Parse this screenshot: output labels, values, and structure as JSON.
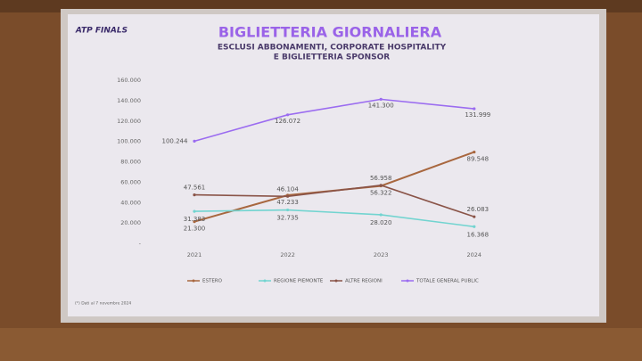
{
  "chart_data": {
    "type": "line",
    "logo": "ATP FINALS",
    "title": "BIGLIETTERIA GIORNALIERA",
    "subtitle": [
      "ESCLUSI ABBONAMENTI, CORPORATE HOSPITALITY",
      "E BIGLIETTERIA SPONSOR"
    ],
    "categories": [
      "2021",
      "2022",
      "2023",
      "2024"
    ],
    "series": [
      {
        "name": "ESTERO",
        "color": "#a8673f",
        "values": [
          21300,
          47233,
          56322,
          89548
        ],
        "value_labels": [
          "21.300",
          "47.233",
          "56.322",
          "89.548"
        ]
      },
      {
        "name": "REGIONE PIEMONTE",
        "color": "#72d4d0",
        "values": [
          31383,
          32735,
          28020,
          16368
        ],
        "value_labels": [
          "31.383",
          "32.735",
          "28.020",
          "16.368"
        ]
      },
      {
        "name": "ALTRE REGIONI",
        "color": "#8a5448",
        "values": [
          47561,
          46104,
          56958,
          26083
        ],
        "value_labels": [
          "47.561",
          "46.104",
          "56.958",
          "26.083"
        ]
      },
      {
        "name": "TOTALE GENERAL PUBLIC",
        "color": "#9b6cf0",
        "values": [
          100244,
          126072,
          141300,
          131999
        ],
        "value_labels": [
          "100.244",
          "126.072",
          "141.300",
          "131.999"
        ]
      }
    ],
    "ylim": [
      0,
      160000
    ],
    "yticks": [
      {
        "value": 0,
        "label": "-"
      },
      {
        "value": 20000,
        "label": "20.000"
      },
      {
        "value": 40000,
        "label": "40.000"
      },
      {
        "value": 60000,
        "label": "60.000"
      },
      {
        "value": 80000,
        "label": "80.000"
      },
      {
        "value": 100000,
        "label": "100.000"
      },
      {
        "value": 120000,
        "label": "120.000"
      },
      {
        "value": 140000,
        "label": "140.000"
      },
      {
        "value": 160000,
        "label": "160.000"
      }
    ],
    "grid": false,
    "legend": "bottom",
    "footnote": "(*) Dati al 7 novembre 2024"
  }
}
